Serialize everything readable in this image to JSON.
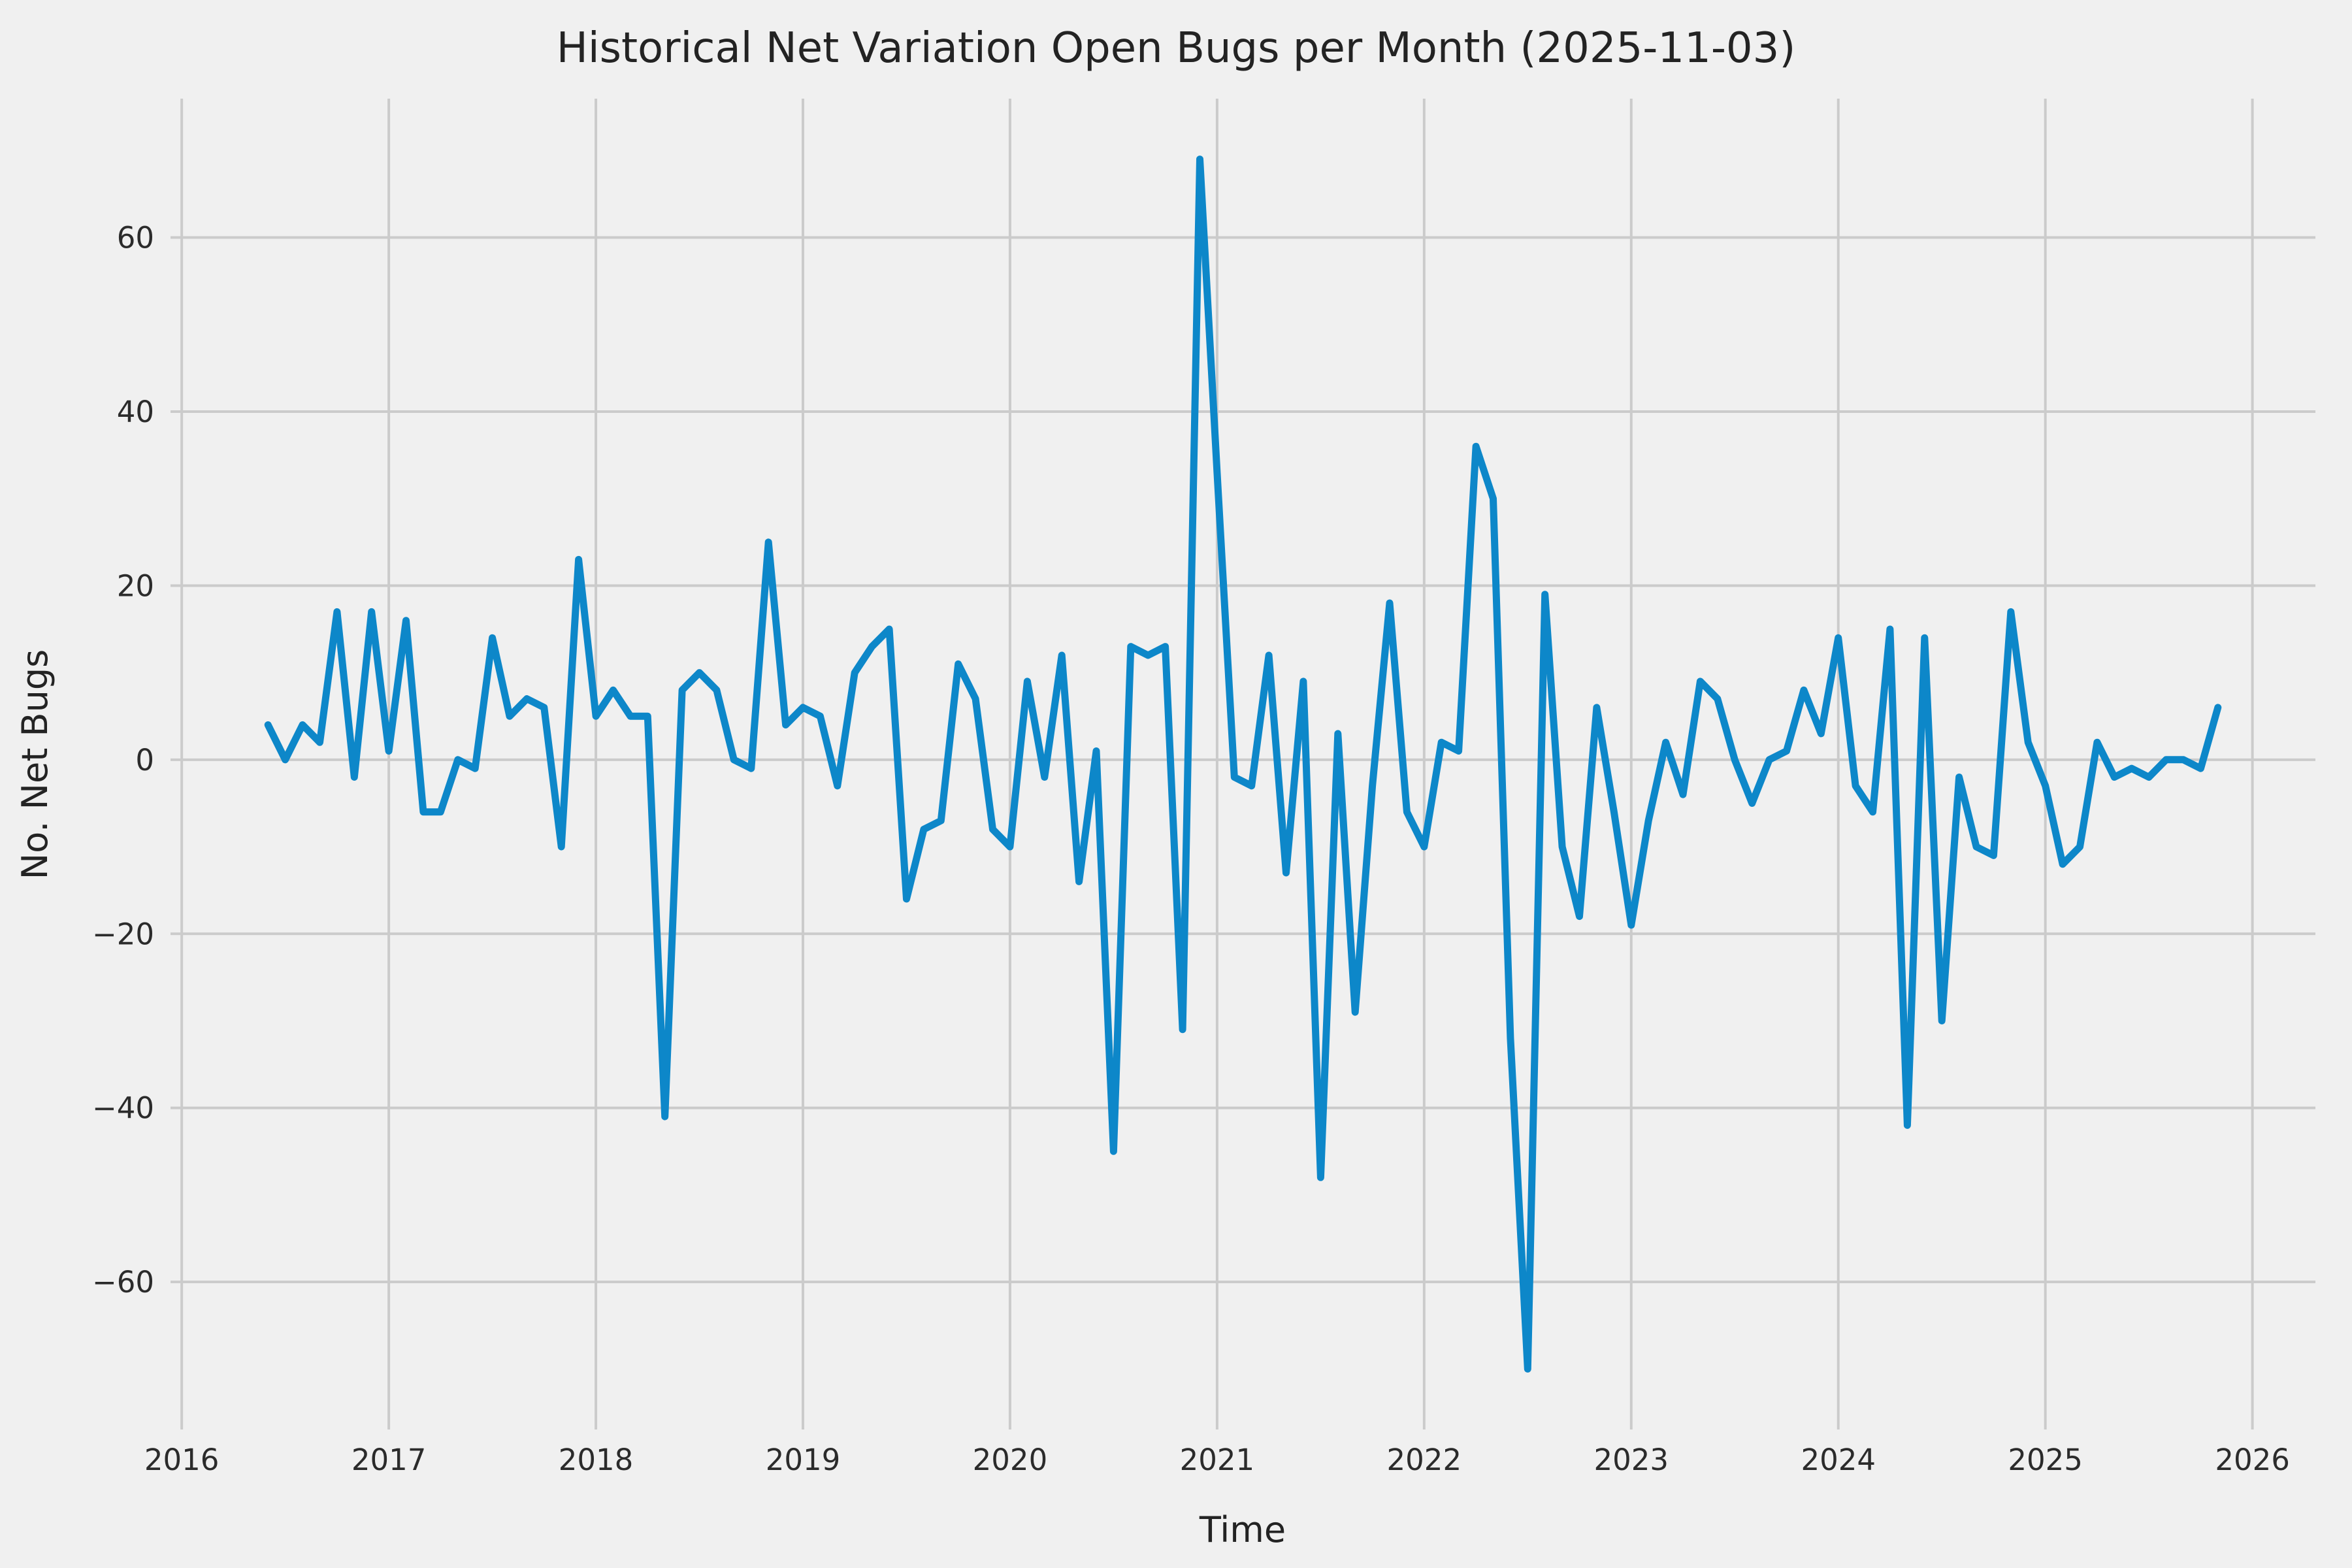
{
  "title": "Historical Net Variation Open Bugs per Month (2025-11-03)",
  "chart_data": {
    "type": "line",
    "title": "Historical Net Variation Open Bugs per Month (2025-11-03)",
    "xlabel": "Time",
    "ylabel": "No. Net Bugs",
    "grid": true,
    "legend": "none",
    "background_color": "#f0f0f0",
    "grid_color": "#cbcbcb",
    "line_color": "#0d87c9",
    "text_color": "#232323",
    "x_tick_labels": [
      "2016",
      "2017",
      "2018",
      "2019",
      "2020",
      "2021",
      "2022",
      "2023",
      "2024",
      "2025",
      "2026"
    ],
    "x_tick_month_offsets": [
      0,
      12,
      24,
      36,
      48,
      60,
      72,
      84,
      96,
      108,
      120
    ],
    "y_ticks": [
      -60,
      -40,
      -20,
      0,
      20,
      40,
      60
    ],
    "xlim_months_from_2016_01": [
      -0.65,
      123.65
    ],
    "ylim": [
      -76.95,
      75.95
    ],
    "x_start_month_offset": 5,
    "x": [
      "2016-06",
      "2016-07",
      "2016-08",
      "2016-09",
      "2016-10",
      "2016-11",
      "2016-12",
      "2017-01",
      "2017-02",
      "2017-03",
      "2017-04",
      "2017-05",
      "2017-06",
      "2017-07",
      "2017-08",
      "2017-09",
      "2017-10",
      "2017-11",
      "2017-12",
      "2018-01",
      "2018-02",
      "2018-03",
      "2018-04",
      "2018-05",
      "2018-06",
      "2018-07",
      "2018-08",
      "2018-09",
      "2018-10",
      "2018-11",
      "2018-12",
      "2019-01",
      "2019-02",
      "2019-03",
      "2019-04",
      "2019-05",
      "2019-06",
      "2019-07",
      "2019-08",
      "2019-09",
      "2019-10",
      "2019-11",
      "2019-12",
      "2020-01",
      "2020-02",
      "2020-03",
      "2020-04",
      "2020-05",
      "2020-06",
      "2020-07",
      "2020-08",
      "2020-09",
      "2020-10",
      "2020-11",
      "2020-12",
      "2021-01",
      "2021-02",
      "2021-03",
      "2021-04",
      "2021-05",
      "2021-06",
      "2021-07",
      "2021-08",
      "2021-09",
      "2021-10",
      "2021-11",
      "2021-12",
      "2022-01",
      "2022-02",
      "2022-03",
      "2022-04",
      "2022-05",
      "2022-06",
      "2022-07",
      "2022-08",
      "2022-09",
      "2022-10",
      "2022-11",
      "2022-12",
      "2023-01",
      "2023-02",
      "2023-03",
      "2023-04",
      "2023-05",
      "2023-06",
      "2023-07",
      "2023-08",
      "2023-09",
      "2023-10",
      "2023-11",
      "2023-12",
      "2024-01",
      "2024-02",
      "2024-03",
      "2024-04",
      "2024-05",
      "2024-06",
      "2024-07",
      "2024-08",
      "2024-09",
      "2024-10",
      "2024-11",
      "2024-12",
      "2025-01",
      "2025-02",
      "2025-03",
      "2025-04",
      "2025-05",
      "2025-06",
      "2025-07",
      "2025-08",
      "2025-09",
      "2025-10",
      "2025-11"
    ],
    "values": [
      4,
      0,
      4,
      2,
      17,
      -2,
      17,
      1,
      16,
      -6,
      -6,
      0,
      -1,
      14,
      5,
      7,
      6,
      -10,
      23,
      5,
      8,
      5,
      5,
      -41,
      8,
      10,
      8,
      0,
      -1,
      25,
      4,
      6,
      5,
      -3,
      10,
      13,
      15,
      -16,
      -8,
      -7,
      11,
      7,
      -8,
      -10,
      9,
      -2,
      12,
      -14,
      1,
      -45,
      13,
      12,
      13,
      -31,
      69,
      33,
      -2,
      -3,
      12,
      -13,
      9,
      -48,
      3,
      -29,
      -3,
      18,
      -6,
      -10,
      2,
      1,
      36,
      30,
      -32,
      -70,
      19,
      -10,
      -18,
      6,
      -6,
      -19,
      -7,
      2,
      -4,
      9,
      7,
      0,
      -5,
      0,
      1,
      8,
      3,
      14,
      -3,
      -6,
      15,
      -42,
      14,
      -30,
      -2,
      -10,
      -11,
      17,
      2,
      -3,
      -12,
      -10,
      2,
      -2,
      -1,
      -2,
      0,
      0,
      -1,
      6
    ]
  }
}
